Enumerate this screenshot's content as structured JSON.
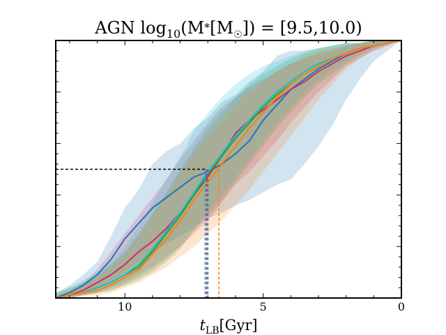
{
  "chart_data": {
    "type": "line",
    "title": {
      "pre": "AGN log",
      "sub": "10",
      "mid": "(M",
      "star": "*",
      "bracket": "[M",
      "sun": "☉",
      "post": "]) = [9.5,10.0)"
    },
    "xlabel": {
      "main": "t",
      "sub": "LB",
      "unit": "[Gyr]"
    },
    "ylabel": "",
    "xlim": [
      12.5,
      0
    ],
    "ylim": [
      0,
      1
    ],
    "x_ticks": [
      10,
      5,
      0
    ],
    "x_tick_labels": [
      "10",
      "5",
      "0"
    ],
    "y_ticks": [
      0,
      0.2,
      0.4,
      0.6,
      0.8,
      1.0
    ],
    "y_tick_labels_visible": false,
    "grid": false,
    "legend": "none",
    "reference_line": {
      "y": 0.5,
      "style": "dashed",
      "color": "#000000"
    },
    "series": [
      {
        "color": "#1f77b4",
        "x": [
          12.5,
          12,
          11.5,
          11,
          10.5,
          10,
          9.5,
          9,
          8.5,
          8,
          7.5,
          7,
          6.5,
          6,
          5.5,
          5,
          4.5,
          4,
          3.5,
          3,
          2.5,
          2,
          1.5,
          1,
          0
        ],
        "y": [
          0.0,
          0.02,
          0.05,
          0.09,
          0.15,
          0.23,
          0.29,
          0.35,
          0.39,
          0.43,
          0.47,
          0.49,
          0.52,
          0.56,
          0.61,
          0.69,
          0.75,
          0.81,
          0.85,
          0.89,
          0.92,
          0.95,
          0.97,
          0.98,
          1.0
        ],
        "lower": [
          0.0,
          0.01,
          0.02,
          0.04,
          0.06,
          0.1,
          0.14,
          0.18,
          0.21,
          0.24,
          0.27,
          0.31,
          0.33,
          0.36,
          0.38,
          0.41,
          0.44,
          0.46,
          0.52,
          0.59,
          0.67,
          0.77,
          0.85,
          0.92,
          1.0
        ],
        "upper": [
          0.02,
          0.05,
          0.09,
          0.14,
          0.24,
          0.35,
          0.42,
          0.52,
          0.57,
          0.6,
          0.66,
          0.7,
          0.76,
          0.79,
          0.84,
          0.88,
          0.94,
          0.96,
          0.96,
          0.97,
          0.98,
          0.99,
          0.99,
          1.0,
          1.0
        ],
        "t50": 7.0
      },
      {
        "color": "#d62768",
        "x": [
          12.5,
          12,
          11.5,
          11,
          10.5,
          10,
          9.5,
          9,
          8.5,
          8,
          7.5,
          7,
          6.5,
          6,
          5.5,
          5,
          4.5,
          4,
          3.5,
          3,
          2.5,
          2,
          1.5,
          1,
          0
        ],
        "y": [
          0.0,
          0.01,
          0.03,
          0.06,
          0.09,
          0.13,
          0.18,
          0.22,
          0.27,
          0.33,
          0.4,
          0.47,
          0.55,
          0.64,
          0.69,
          0.73,
          0.77,
          0.81,
          0.84,
          0.88,
          0.91,
          0.94,
          0.96,
          0.98,
          1.0
        ],
        "lower": [
          0.0,
          0.0,
          0.01,
          0.02,
          0.04,
          0.06,
          0.09,
          0.12,
          0.16,
          0.2,
          0.25,
          0.3,
          0.37,
          0.44,
          0.49,
          0.55,
          0.61,
          0.68,
          0.74,
          0.8,
          0.85,
          0.9,
          0.93,
          0.96,
          1.0
        ],
        "upper": [
          0.01,
          0.03,
          0.06,
          0.11,
          0.18,
          0.25,
          0.32,
          0.39,
          0.46,
          0.54,
          0.61,
          0.68,
          0.74,
          0.78,
          0.82,
          0.85,
          0.88,
          0.91,
          0.93,
          0.95,
          0.96,
          0.98,
          0.99,
          1.0,
          1.0
        ],
        "t50": 7.05
      },
      {
        "color": "#2ca02c",
        "x": [
          12.5,
          12,
          11.5,
          11,
          10.5,
          10,
          9.5,
          9,
          8.5,
          8,
          7.5,
          7,
          6.5,
          6,
          5.5,
          5,
          4.5,
          4,
          3.5,
          3,
          2.5,
          2,
          1.5,
          1,
          0
        ],
        "y": [
          0.0,
          0.01,
          0.02,
          0.04,
          0.06,
          0.09,
          0.12,
          0.18,
          0.25,
          0.32,
          0.4,
          0.48,
          0.55,
          0.62,
          0.68,
          0.74,
          0.79,
          0.83,
          0.87,
          0.9,
          0.93,
          0.95,
          0.97,
          0.98,
          1.0
        ],
        "lower": [
          0.0,
          0.0,
          0.01,
          0.02,
          0.03,
          0.05,
          0.07,
          0.1,
          0.14,
          0.19,
          0.26,
          0.32,
          0.38,
          0.45,
          0.52,
          0.59,
          0.66,
          0.72,
          0.78,
          0.83,
          0.87,
          0.91,
          0.94,
          0.97,
          1.0
        ],
        "upper": [
          0.02,
          0.04,
          0.06,
          0.09,
          0.13,
          0.18,
          0.25,
          0.33,
          0.41,
          0.5,
          0.58,
          0.66,
          0.72,
          0.78,
          0.83,
          0.87,
          0.9,
          0.93,
          0.95,
          0.97,
          0.98,
          0.99,
          0.99,
          1.0,
          1.0
        ],
        "t50": 7.1
      },
      {
        "color": "#17becf",
        "x": [
          12.5,
          12,
          11.5,
          11,
          10.5,
          10,
          9.5,
          9,
          8.5,
          8,
          7.5,
          7,
          6.5,
          6,
          5.5,
          5,
          4.5,
          4,
          3.5,
          3,
          2.5,
          2,
          1.5,
          1,
          0
        ],
        "y": [
          0.0,
          0.01,
          0.02,
          0.04,
          0.06,
          0.09,
          0.13,
          0.19,
          0.26,
          0.33,
          0.41,
          0.49,
          0.56,
          0.63,
          0.69,
          0.75,
          0.8,
          0.84,
          0.88,
          0.91,
          0.93,
          0.95,
          0.97,
          0.98,
          1.0
        ],
        "lower": [
          0.0,
          0.0,
          0.01,
          0.02,
          0.03,
          0.05,
          0.08,
          0.11,
          0.15,
          0.2,
          0.27,
          0.34,
          0.4,
          0.47,
          0.54,
          0.61,
          0.68,
          0.74,
          0.8,
          0.85,
          0.89,
          0.92,
          0.95,
          0.97,
          1.0
        ],
        "upper": [
          0.02,
          0.04,
          0.07,
          0.1,
          0.14,
          0.2,
          0.28,
          0.37,
          0.46,
          0.55,
          0.65,
          0.72,
          0.78,
          0.83,
          0.87,
          0.9,
          0.92,
          0.94,
          0.96,
          0.97,
          0.98,
          0.99,
          0.99,
          1.0,
          1.0
        ],
        "t50": 7.1
      },
      {
        "color": "#ff7f0e",
        "x": [
          12.5,
          12,
          11.5,
          11,
          10.5,
          10,
          9.5,
          9,
          8.5,
          8,
          7.5,
          7,
          6.5,
          6,
          5.5,
          5,
          4.5,
          4,
          3.5,
          3,
          2.5,
          2,
          1.5,
          1,
          0
        ],
        "y": [
          0.0,
          0.01,
          0.02,
          0.03,
          0.05,
          0.08,
          0.11,
          0.17,
          0.23,
          0.3,
          0.38,
          0.45,
          0.52,
          0.59,
          0.66,
          0.72,
          0.78,
          0.83,
          0.87,
          0.9,
          0.93,
          0.95,
          0.97,
          0.98,
          1.0
        ],
        "lower": [
          0.0,
          0.0,
          0.01,
          0.01,
          0.02,
          0.04,
          0.06,
          0.09,
          0.12,
          0.16,
          0.2,
          0.25,
          0.3,
          0.36,
          0.42,
          0.49,
          0.56,
          0.63,
          0.7,
          0.77,
          0.83,
          0.89,
          0.93,
          0.96,
          1.0
        ],
        "upper": [
          0.01,
          0.03,
          0.05,
          0.08,
          0.12,
          0.17,
          0.24,
          0.32,
          0.4,
          0.48,
          0.56,
          0.63,
          0.69,
          0.75,
          0.8,
          0.84,
          0.88,
          0.91,
          0.94,
          0.96,
          0.97,
          0.98,
          0.99,
          1.0,
          1.0
        ],
        "t50": 6.6
      }
    ]
  }
}
